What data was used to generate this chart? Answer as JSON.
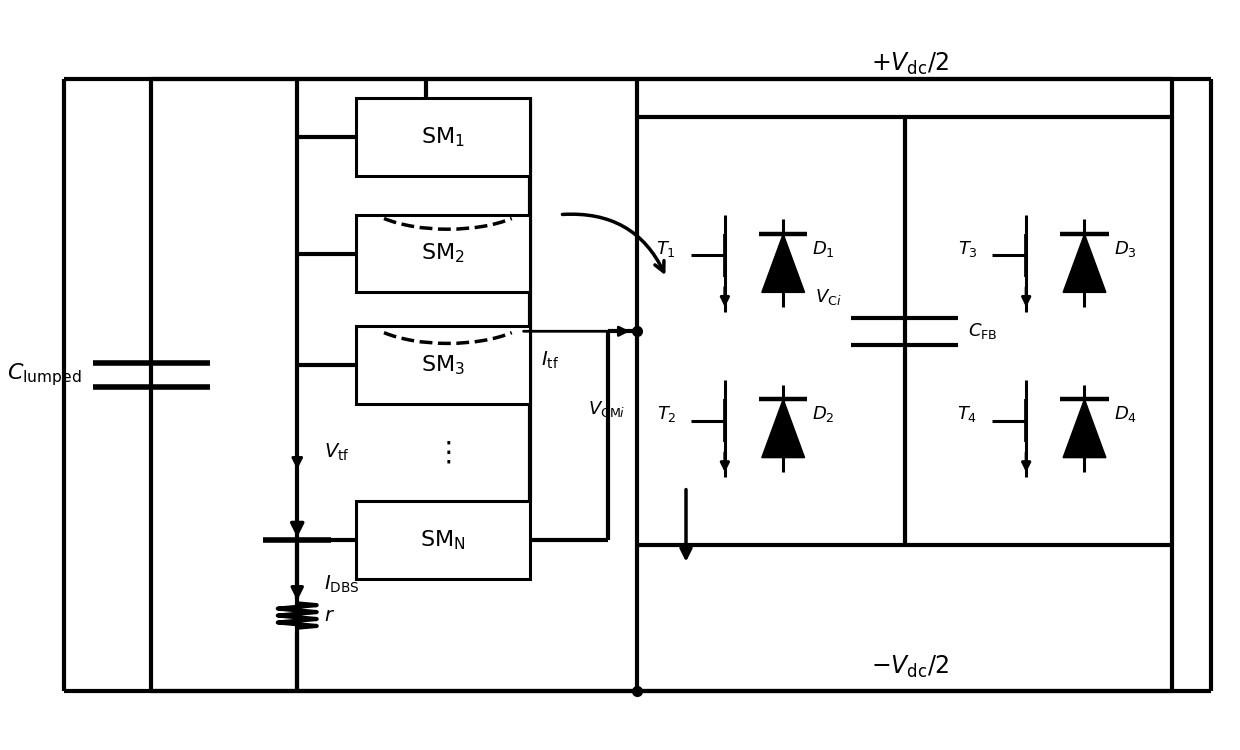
{
  "bg_color": "#ffffff",
  "line_color": "#000000",
  "lw": 2.2,
  "lw_thick": 3.0,
  "fig_width": 12.4,
  "fig_height": 7.5,
  "sm_labels": [
    "SM_1",
    "SM_2",
    "SM_3",
    "SM_N"
  ],
  "top_label": "+V_{\\rm dc}/2",
  "bot_label": "-V_{\\rm dc}/2"
}
